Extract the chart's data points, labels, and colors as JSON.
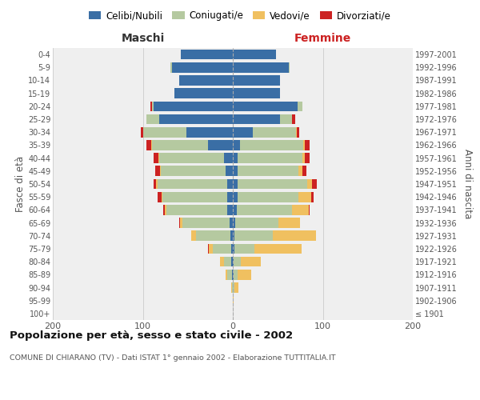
{
  "age_groups": [
    "100+",
    "95-99",
    "90-94",
    "85-89",
    "80-84",
    "75-79",
    "70-74",
    "65-69",
    "60-64",
    "55-59",
    "50-54",
    "45-49",
    "40-44",
    "35-39",
    "30-34",
    "25-29",
    "20-24",
    "15-19",
    "10-14",
    "5-9",
    "0-4"
  ],
  "birth_years": [
    "≤ 1901",
    "1902-1906",
    "1907-1911",
    "1912-1916",
    "1917-1921",
    "1922-1926",
    "1927-1931",
    "1932-1936",
    "1937-1941",
    "1942-1946",
    "1947-1951",
    "1952-1956",
    "1957-1961",
    "1962-1966",
    "1967-1971",
    "1972-1976",
    "1977-1981",
    "1982-1986",
    "1987-1991",
    "1992-1996",
    "1997-2001"
  ],
  "maschi": {
    "celibi": [
      0,
      0,
      0,
      1,
      2,
      2,
      3,
      4,
      6,
      6,
      6,
      8,
      10,
      28,
      52,
      82,
      88,
      65,
      60,
      68,
      58
    ],
    "coniugati": [
      0,
      0,
      1,
      5,
      8,
      20,
      38,
      52,
      68,
      72,
      78,
      72,
      72,
      62,
      48,
      14,
      2,
      0,
      0,
      1,
      0
    ],
    "vedovi": [
      0,
      0,
      1,
      2,
      4,
      5,
      5,
      3,
      2,
      1,
      1,
      1,
      1,
      1,
      0,
      0,
      0,
      0,
      0,
      0,
      0
    ],
    "divorziati": [
      0,
      0,
      0,
      0,
      0,
      1,
      0,
      1,
      1,
      5,
      3,
      5,
      5,
      5,
      2,
      0,
      2,
      0,
      0,
      0,
      0
    ]
  },
  "femmine": {
    "nubili": [
      0,
      0,
      0,
      1,
      1,
      2,
      2,
      3,
      4,
      5,
      5,
      5,
      5,
      8,
      22,
      52,
      72,
      52,
      52,
      62,
      48
    ],
    "coniugate": [
      0,
      0,
      2,
      4,
      8,
      22,
      42,
      48,
      62,
      68,
      78,
      68,
      72,
      70,
      48,
      14,
      5,
      0,
      0,
      1,
      0
    ],
    "vedove": [
      0,
      1,
      4,
      15,
      22,
      52,
      48,
      24,
      18,
      14,
      5,
      4,
      3,
      2,
      1,
      0,
      0,
      0,
      0,
      0,
      0
    ],
    "divorziate": [
      0,
      0,
      0,
      0,
      0,
      0,
      0,
      0,
      1,
      3,
      5,
      5,
      5,
      5,
      3,
      3,
      0,
      0,
      0,
      0,
      0
    ]
  },
  "colors": {
    "celibi": "#3a6ea5",
    "coniugati": "#b5c9a0",
    "vedovi": "#f0c060",
    "divorziati": "#cc2222"
  },
  "title": "Popolazione per età, sesso e stato civile - 2002",
  "subtitle": "COMUNE DI CHIARANO (TV) - Dati ISTAT 1° gennaio 2002 - Elaborazione TUTTITALIA.IT",
  "label_maschi": "Maschi",
  "label_femmine": "Femmine",
  "ylabel_left": "Fasce di età",
  "ylabel_right": "Anni di nascita",
  "xlim": 200,
  "background_color": "#ffffff",
  "plot_bg_color": "#efefef",
  "grid_color": "#cccccc",
  "legend_labels": [
    "Celibi/Nubili",
    "Coniugati/e",
    "Vedovi/e",
    "Divorziati/e"
  ]
}
